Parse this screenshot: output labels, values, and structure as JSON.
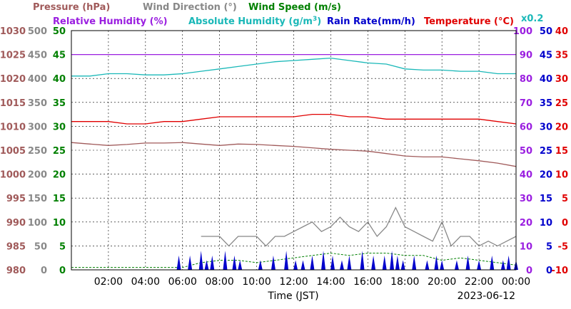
{
  "chart_data": {
    "type": "line",
    "date": "2023-06-12",
    "xlabel": "Time (JST)",
    "x_ticks": [
      "02:00",
      "04:00",
      "06:00",
      "08:00",
      "10:00",
      "12:00",
      "14:00",
      "16:00",
      "18:00",
      "20:00",
      "22:00",
      "00:00"
    ],
    "legend_row1": [
      {
        "text": "Pressure (hPa)",
        "color": "#a05a5a"
      },
      {
        "text": "Wind Direction (°)",
        "color": "#888888"
      },
      {
        "text": "Wind Speed (m/s)",
        "color": "#008000"
      }
    ],
    "legend_row2": [
      {
        "text": "Relative Humidity (%)",
        "color": "#9a1ee0"
      },
      {
        "text": "Absolute Humidity (g/m",
        "sup": "3",
        "close": ")",
        "color": "#1ab8b8"
      },
      {
        "text": "Rain Rate(mm/h)",
        "color": "#0000cc"
      },
      {
        "text": "Temperature (°C)",
        "color": "#e00000"
      }
    ],
    "scale_note": "x0.2",
    "axes": {
      "pressure": {
        "min": 980,
        "max": 1030,
        "ticks": [
          "980",
          "985",
          "990",
          "995",
          "1000",
          "1005",
          "1010",
          "1015",
          "1020",
          "1025",
          "1030"
        ],
        "color": "#a05a5a"
      },
      "wind_direction": {
        "min": 0,
        "max": 500,
        "ticks": [
          "0",
          "50",
          "100",
          "150",
          "200",
          "250",
          "300",
          "350",
          "400",
          "450",
          "500"
        ],
        "color": "#888888"
      },
      "wind_speed": {
        "min": 0,
        "max": 50,
        "ticks": [
          "0",
          "5",
          "10",
          "15",
          "20",
          "25",
          "30",
          "35",
          "40",
          "45",
          "50"
        ],
        "color": "#008000"
      },
      "humidity": {
        "min": 0,
        "max": 100,
        "ticks": [
          "0",
          "10",
          "20",
          "30",
          "40",
          "50",
          "60",
          "70",
          "80",
          "90",
          "100"
        ],
        "color": "#9a1ee0"
      },
      "rain_rate": {
        "min": 0,
        "max": 50,
        "ticks": [
          "0",
          "5",
          "10",
          "15",
          "20",
          "25",
          "30",
          "35",
          "40",
          "45",
          "50"
        ],
        "color": "#0000cc"
      },
      "temperature": {
        "min": -10,
        "max": 40,
        "ticks": [
          "-10",
          "-5",
          "0",
          "5",
          "10",
          "15",
          "20",
          "25",
          "30",
          "35",
          "40"
        ],
        "color": "#e00000"
      }
    },
    "series": [
      {
        "name": "Relative Humidity (%)",
        "color": "#9a1ee0",
        "axis": "humidity",
        "x": [
          0,
          5,
          6,
          7,
          8,
          9,
          10,
          11,
          12,
          13,
          14,
          15,
          16,
          17,
          18,
          19,
          20,
          21,
          22,
          23,
          24
        ],
        "y": [
          90,
          90,
          90,
          90,
          90,
          90,
          90,
          90,
          90,
          90,
          90,
          90,
          90,
          90,
          90,
          90,
          90,
          90,
          90,
          90,
          90
        ]
      },
      {
        "name": "Absolute Humidity (g/m3)",
        "color": "#1ab8b8",
        "axis": "humidity",
        "x": [
          0,
          1,
          2,
          3,
          4,
          5,
          6,
          7,
          8,
          9,
          10,
          11,
          12,
          13,
          14,
          15,
          16,
          17,
          18,
          19,
          20,
          21,
          22,
          23,
          24
        ],
        "y": [
          81,
          81,
          82,
          82,
          81.5,
          81.5,
          82,
          83,
          84,
          85,
          86,
          87,
          87.5,
          88,
          88.5,
          87.5,
          86.5,
          86,
          84,
          83.5,
          83.5,
          83,
          83,
          82,
          82
        ]
      },
      {
        "name": "Temperature (°C)",
        "color": "#e00000",
        "axis": "temperature",
        "x": [
          0,
          1,
          2,
          3,
          4,
          5,
          6,
          7,
          8,
          9,
          10,
          11,
          12,
          13,
          14,
          15,
          16,
          17,
          18,
          19,
          20,
          21,
          22,
          23,
          24
        ],
        "y": [
          21,
          21,
          21,
          20.5,
          20.5,
          21,
          21,
          21.5,
          22,
          22,
          22,
          22,
          22,
          22.5,
          22.5,
          22,
          22,
          21.5,
          21.5,
          21.5,
          21.5,
          21.5,
          21.5,
          21,
          20.5
        ]
      },
      {
        "name": "Pressure (hPa)",
        "color": "#a05a5a",
        "axis": "pressure",
        "x": [
          0,
          1,
          2,
          3,
          4,
          5,
          6,
          7,
          8,
          9,
          10,
          11,
          12,
          13,
          14,
          15,
          16,
          17,
          18,
          19,
          20,
          21,
          22,
          23,
          24
        ],
        "y": [
          1006.6,
          1006.3,
          1006.0,
          1006.2,
          1006.5,
          1006.5,
          1006.6,
          1006.3,
          1006.0,
          1006.3,
          1006.2,
          1006.0,
          1005.8,
          1005.5,
          1005.2,
          1005.0,
          1004.8,
          1004.3,
          1003.8,
          1003.6,
          1003.6,
          1003.2,
          1002.8,
          1002.3,
          1001.6
        ]
      },
      {
        "name": "Wind Direction (°)",
        "color": "#888888",
        "axis": "wind_direction",
        "x": [
          0,
          6.5,
          7,
          7.5,
          8,
          8.5,
          9,
          9.5,
          10,
          10.5,
          11,
          11.5,
          12,
          12.5,
          13,
          13.5,
          14,
          14.5,
          15,
          15.5,
          16,
          16.5,
          17,
          17.5,
          18,
          18.5,
          19,
          19.5,
          20,
          20.5,
          21,
          21.5,
          22,
          22.5,
          23,
          23.5,
          24
        ],
        "y": [
          null,
          null,
          70,
          70,
          70,
          50,
          70,
          70,
          70,
          50,
          70,
          70,
          80,
          90,
          100,
          80,
          90,
          110,
          90,
          80,
          100,
          70,
          90,
          130,
          90,
          80,
          70,
          60,
          100,
          50,
          70,
          70,
          50,
          60,
          50,
          60,
          70
        ]
      },
      {
        "name": "Wind Speed (m/s)",
        "color": "#008000",
        "axis": "wind_speed",
        "x": [
          0,
          1,
          2,
          3,
          4,
          5,
          6,
          7,
          8,
          9,
          10,
          11,
          12,
          13,
          14,
          15,
          16,
          17,
          18,
          19,
          20,
          21,
          22,
          23,
          24
        ],
        "y": [
          0.5,
          0.5,
          0.5,
          0.5,
          0.5,
          0.5,
          0.5,
          1.5,
          2,
          2,
          1.5,
          2,
          2.5,
          3,
          3.5,
          3,
          3.5,
          3.5,
          3,
          3,
          2,
          2.5,
          2,
          1.5,
          1
        ]
      },
      {
        "name": "Rain Rate(mm/h)",
        "color": "#0000cc",
        "axis": "rain_rate",
        "x": [
          5.8,
          6.4,
          7.0,
          7.3,
          7.6,
          8.3,
          8.8,
          9.1,
          10.2,
          10.9,
          11.6,
          12.1,
          12.5,
          13.0,
          13.6,
          14.1,
          14.6,
          15.0,
          15.7,
          16.3,
          16.9,
          17.3,
          17.6,
          17.9,
          18.5,
          19.2,
          19.7,
          20.0,
          20.8,
          21.4,
          22.0,
          22.7,
          23.3,
          23.6,
          24.0
        ],
        "y": [
          3,
          3,
          4,
          2,
          3,
          4,
          3,
          2,
          2,
          3,
          4,
          2,
          2,
          3,
          4,
          3,
          2,
          3,
          4,
          3,
          3,
          4,
          3,
          2,
          3,
          2,
          3,
          2,
          2,
          3,
          2,
          3,
          2,
          3,
          2
        ]
      }
    ]
  }
}
